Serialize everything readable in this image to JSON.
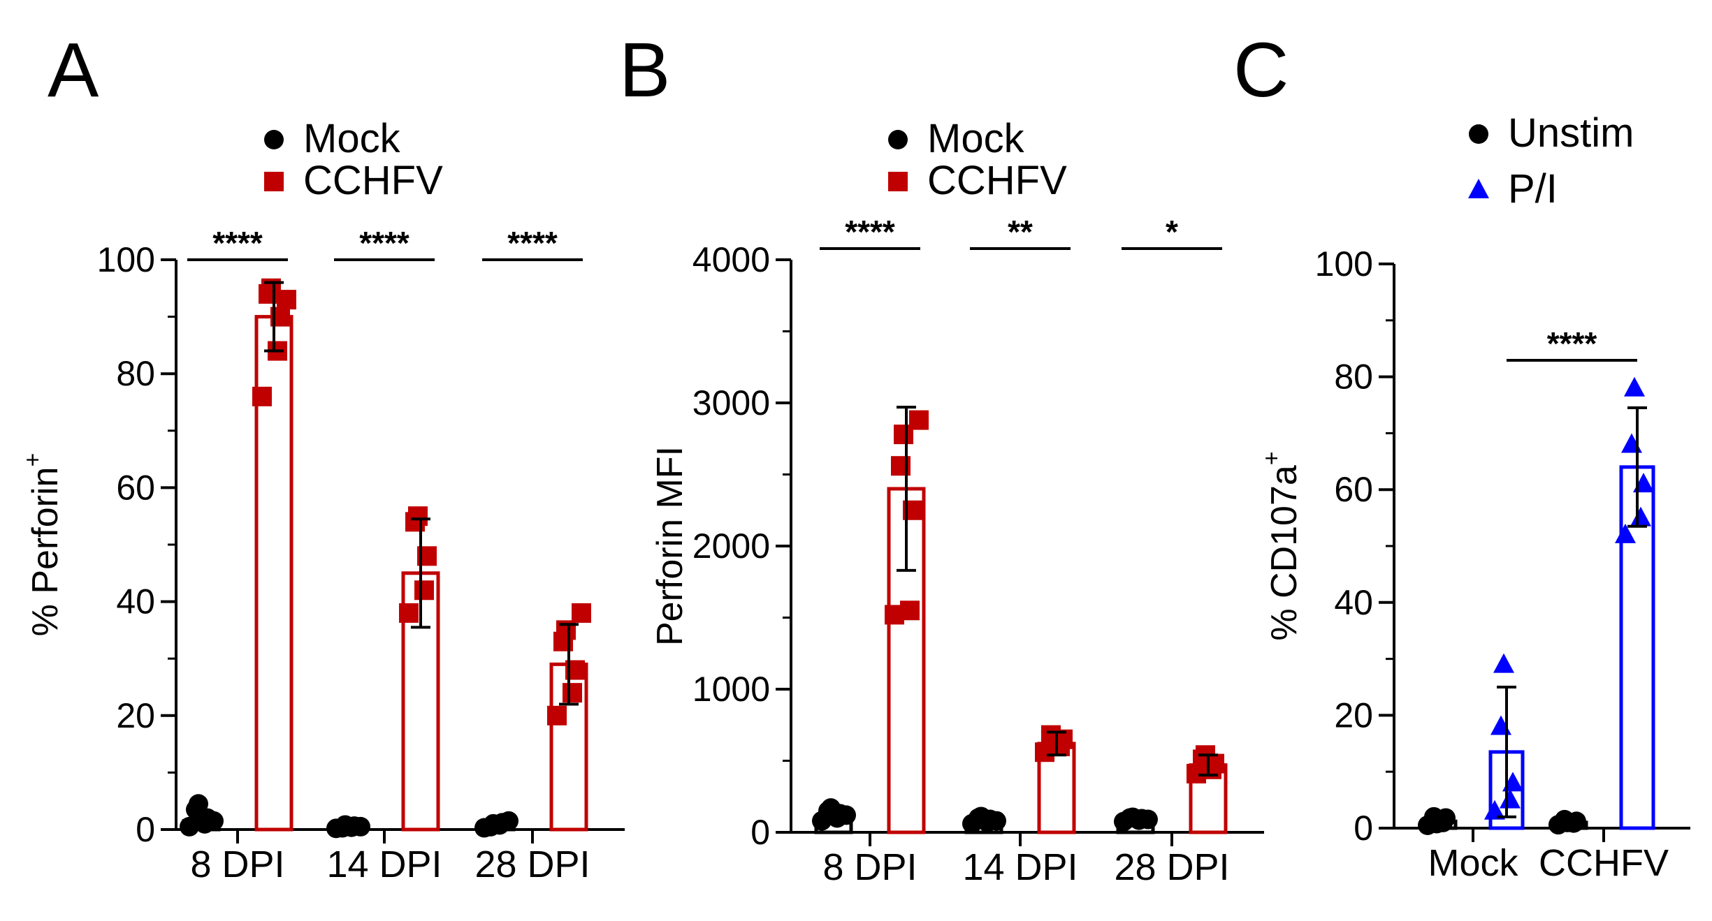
{
  "figure": {
    "panels": [
      "A",
      "B",
      "C"
    ]
  },
  "chart_data": [
    {
      "panel": "A",
      "type": "bar",
      "title": "",
      "ylabel": "% Perforin",
      "ylabel_superscript": "+",
      "ylim": [
        0,
        100
      ],
      "yticks": [
        0,
        20,
        40,
        60,
        80,
        100
      ],
      "categories": [
        "8 DPI",
        "14 DPI",
        "28 DPI"
      ],
      "legend": [
        {
          "name": "Mock",
          "marker": "circle",
          "color": "#000000"
        },
        {
          "name": "CCHFV",
          "marker": "square",
          "color": "#c00000"
        }
      ],
      "series": [
        {
          "name": "Mock",
          "color": "#000000",
          "marker": "circle",
          "values": [
            1.5,
            0.5,
            0.8
          ],
          "errors": [
            1.2,
            0.3,
            0.5
          ],
          "points": [
            [
              0.5,
              1.0,
              2.0,
              3.5,
              4.5,
              1.5
            ],
            [
              0.2,
              0.4,
              0.6,
              0.3,
              0.8,
              0.5
            ],
            [
              0.3,
              0.8,
              1.2,
              0.5,
              1.0,
              1.5
            ]
          ]
        },
        {
          "name": "CCHFV",
          "color": "#c00000",
          "marker": "square",
          "values": [
            90,
            45,
            29
          ],
          "errors": [
            6,
            9.5,
            7
          ],
          "points": [
            [
              76,
              84,
              90,
              94,
              95,
              93
            ],
            [
              38,
              42,
              48,
              54,
              55
            ],
            [
              20,
              24,
              28,
              33,
              35,
              38
            ]
          ]
        }
      ],
      "significance": [
        "****",
        "****",
        "****"
      ]
    },
    {
      "panel": "B",
      "type": "bar",
      "title": "",
      "ylabel": "Perforin MFI",
      "ylim": [
        0,
        4000
      ],
      "yticks": [
        0,
        1000,
        2000,
        3000,
        4000
      ],
      "categories": [
        "8 DPI",
        "14 DPI",
        "28 DPI"
      ],
      "legend": [
        {
          "name": "Mock",
          "marker": "circle",
          "color": "#000000"
        },
        {
          "name": "CCHFV",
          "marker": "square",
          "color": "#c00000"
        }
      ],
      "series": [
        {
          "name": "Mock",
          "color": "#000000",
          "marker": "circle",
          "values": [
            110,
            80,
            90
          ],
          "errors": [
            25,
            15,
            10
          ],
          "points": [
            [
              80,
              100,
              130,
              150,
              170,
              120
            ],
            [
              60,
              70,
              90,
              100,
              110,
              80
            ],
            [
              75,
              85,
              95,
              100,
              105,
              90
            ]
          ]
        },
        {
          "name": "CCHFV",
          "color": "#c00000",
          "marker": "square",
          "values": [
            2400,
            620,
            470
          ],
          "errors": [
            570,
            80,
            70
          ],
          "points": [
            [
              1520,
              1550,
              2250,
              2560,
              2780,
              2880
            ],
            [
              560,
              600,
              650,
              680
            ],
            [
              410,
              440,
              480,
              510,
              540
            ]
          ]
        }
      ],
      "significance": [
        "****",
        "**",
        "*"
      ]
    },
    {
      "panel": "C",
      "type": "bar",
      "title": "",
      "ylabel": "% CD107a",
      "ylabel_superscript": "+",
      "ylim": [
        0,
        100
      ],
      "yticks": [
        0,
        20,
        40,
        60,
        80,
        100
      ],
      "categories": [
        "Mock",
        "CCHFV"
      ],
      "legend": [
        {
          "name": "Unstim",
          "marker": "circle",
          "color": "#000000"
        },
        {
          "name": "P/I",
          "marker": "triangle",
          "color": "#0000ff"
        }
      ],
      "series": [
        {
          "name": "Unstim",
          "color": "#000000",
          "marker": "circle",
          "values": [
            1.2,
            1.0
          ],
          "errors": [
            0.8,
            0.5
          ],
          "points": [
            [
              0.5,
              1.0,
              1.8,
              2.0,
              0.8
            ],
            [
              0.6,
              0.9,
              1.2,
              1.5,
              1.0
            ]
          ]
        },
        {
          "name": "P/I",
          "color": "#0000ff",
          "marker": "triangle",
          "values": [
            13.5,
            64
          ],
          "errors": [
            11.5,
            10.5
          ],
          "points": [
            [
              3,
              5,
              8,
              18,
              29
            ],
            [
              52,
              55,
              61,
              68,
              78
            ]
          ]
        }
      ],
      "significance": [
        "****"
      ]
    }
  ]
}
